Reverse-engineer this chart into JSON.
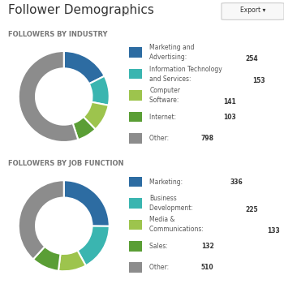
{
  "title": "Follower Demographics",
  "industry": {
    "section_label": "FOLLOWERS BY INDUSTRY",
    "values": [
      254,
      153,
      141,
      103,
      798
    ],
    "colors": [
      "#2d6ca2",
      "#3ab5b0",
      "#9dc44d",
      "#5a9e35",
      "#8c8c8c"
    ],
    "legend_labels": [
      "Marketing and\nAdvertising: ",
      "Information Technology\nand Services: ",
      "Computer\nSoftware: ",
      "Internet: ",
      "Other: "
    ],
    "legend_values": [
      "254",
      "153",
      "141",
      "103",
      "798"
    ]
  },
  "jobfunction": {
    "section_label": "FOLLOWERS BY JOB FUNCTION",
    "values": [
      336,
      225,
      133,
      132,
      510
    ],
    "colors": [
      "#2d6ca2",
      "#3ab5b0",
      "#9dc44d",
      "#5a9e35",
      "#8c8c8c"
    ],
    "legend_labels": [
      "Marketing: ",
      "Business\nDevelopment: ",
      "Media &\nCommunications: ",
      "Sales: ",
      "Other: "
    ],
    "legend_values": [
      "336",
      "225",
      "133",
      "132",
      "510"
    ]
  },
  "bg_color": "#ffffff",
  "text_color": "#333333",
  "label_color": "#555555",
  "section_label_color": "#777777",
  "title_fontsize": 11,
  "section_fontsize": 6.0,
  "legend_fontsize": 5.5,
  "donut_width": 0.38
}
